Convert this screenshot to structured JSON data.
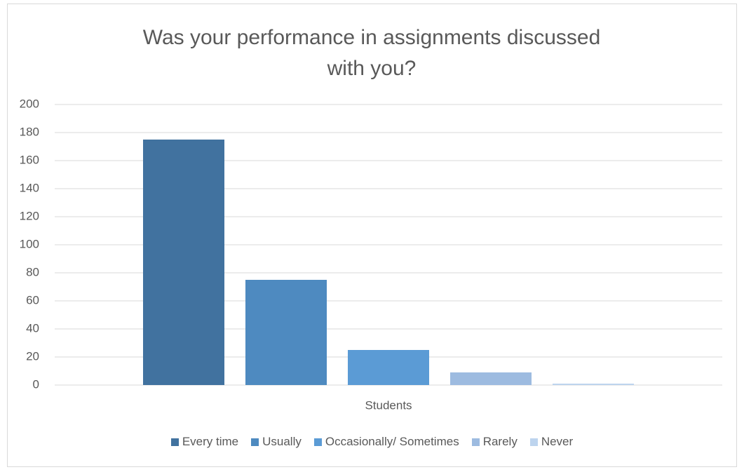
{
  "chart_data": {
    "type": "bar",
    "title": "Was your performance in assignments discussed with you?",
    "x_label": "Students",
    "categories": [
      "Students"
    ],
    "series": [
      {
        "name": "Every time",
        "color": "#41729f",
        "values": [
          175
        ]
      },
      {
        "name": "Usually",
        "color": "#4e8ac0",
        "values": [
          75
        ]
      },
      {
        "name": "Occasionally/ Sometimes",
        "color": "#5b9bd5",
        "values": [
          25
        ]
      },
      {
        "name": "Rarely",
        "color": "#9dbbe0",
        "values": [
          9
        ]
      },
      {
        "name": "Never",
        "color": "#bdd4ee",
        "values": [
          1
        ]
      }
    ],
    "ylim": [
      0,
      200
    ],
    "yticks": [
      0,
      20,
      40,
      60,
      80,
      100,
      120,
      140,
      160,
      180,
      200
    ],
    "grid": true,
    "legend": "bottom"
  }
}
